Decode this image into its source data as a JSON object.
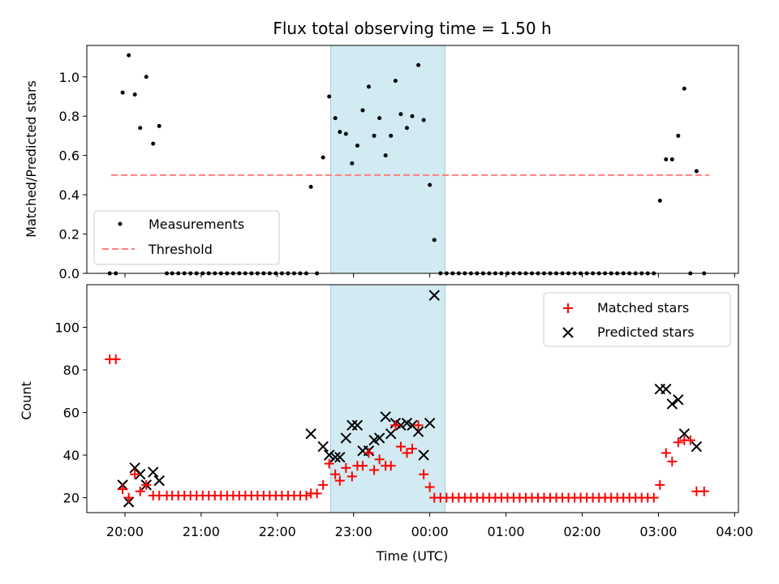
{
  "chart_data": [
    {
      "type": "scatter",
      "title": "Flux total observing time = 1.50 h",
      "xlabel": "",
      "ylabel": "Matched/Predicted stars",
      "ylim": [
        0,
        1.16
      ],
      "yticks": [
        "0.0",
        "0.2",
        "0.4",
        "0.6",
        "0.8",
        "1.0"
      ],
      "xlim": [
        -0.5,
        8.05
      ],
      "highlight_span": [
        2.7,
        4.2
      ],
      "legend": {
        "position": "lower-left",
        "entries": [
          "Measurements",
          "Threshold"
        ]
      },
      "threshold": {
        "name": "Threshold",
        "value": 0.5,
        "x_range": [
          -0.18,
          7.67
        ],
        "color": "#ff7f7f"
      },
      "series": [
        {
          "name": "Measurements",
          "color": "#000000",
          "points": [
            [
              -0.2,
              0
            ],
            [
              -0.12,
              0
            ],
            [
              -0.03,
              0.92
            ],
            [
              0.05,
              1.11
            ],
            [
              0.13,
              0.91
            ],
            [
              0.2,
              0.74
            ],
            [
              0.28,
              1.0
            ],
            [
              0.37,
              0.66
            ],
            [
              0.45,
              0.75
            ],
            [
              0.55,
              0
            ],
            [
              0.62,
              0
            ],
            [
              0.7,
              0
            ],
            [
              0.78,
              0
            ],
            [
              0.86,
              0
            ],
            [
              0.94,
              0
            ],
            [
              1.02,
              0
            ],
            [
              1.1,
              0
            ],
            [
              1.18,
              0
            ],
            [
              1.26,
              0
            ],
            [
              1.34,
              0
            ],
            [
              1.42,
              0
            ],
            [
              1.5,
              0
            ],
            [
              1.58,
              0
            ],
            [
              1.66,
              0
            ],
            [
              1.74,
              0
            ],
            [
              1.82,
              0
            ],
            [
              1.9,
              0
            ],
            [
              1.98,
              0
            ],
            [
              2.06,
              0
            ],
            [
              2.14,
              0
            ],
            [
              2.22,
              0
            ],
            [
              2.3,
              0
            ],
            [
              2.38,
              0.0
            ],
            [
              2.44,
              0.44
            ],
            [
              2.52,
              0
            ],
            [
              2.6,
              0.59
            ],
            [
              2.68,
              0.9
            ],
            [
              2.76,
              0.79
            ],
            [
              2.82,
              0.72
            ],
            [
              2.9,
              0.71
            ],
            [
              2.98,
              0.56
            ],
            [
              3.05,
              0.65
            ],
            [
              3.12,
              0.83
            ],
            [
              3.2,
              0.95
            ],
            [
              3.27,
              0.7
            ],
            [
              3.34,
              0.79
            ],
            [
              3.42,
              0.6
            ],
            [
              3.49,
              0.7
            ],
            [
              3.55,
              0.98
            ],
            [
              3.62,
              0.81
            ],
            [
              3.7,
              0.74
            ],
            [
              3.77,
              0.8
            ],
            [
              3.85,
              1.06
            ],
            [
              3.92,
              0.78
            ],
            [
              4.0,
              0.45
            ],
            [
              4.06,
              0.17
            ],
            [
              4.14,
              0
            ],
            [
              4.22,
              0
            ],
            [
              4.3,
              0
            ],
            [
              4.38,
              0
            ],
            [
              4.46,
              0
            ],
            [
              4.54,
              0
            ],
            [
              4.62,
              0
            ],
            [
              4.7,
              0
            ],
            [
              4.78,
              0
            ],
            [
              4.86,
              0
            ],
            [
              4.94,
              0
            ],
            [
              5.02,
              0
            ],
            [
              5.1,
              0
            ],
            [
              5.18,
              0
            ],
            [
              5.26,
              0
            ],
            [
              5.34,
              0
            ],
            [
              5.42,
              0
            ],
            [
              5.5,
              0
            ],
            [
              5.58,
              0
            ],
            [
              5.66,
              0
            ],
            [
              5.74,
              0
            ],
            [
              5.82,
              0
            ],
            [
              5.9,
              0
            ],
            [
              5.98,
              0
            ],
            [
              6.06,
              0
            ],
            [
              6.14,
              0
            ],
            [
              6.22,
              0
            ],
            [
              6.3,
              0
            ],
            [
              6.38,
              0
            ],
            [
              6.46,
              0
            ],
            [
              6.54,
              0
            ],
            [
              6.62,
              0
            ],
            [
              6.7,
              0
            ],
            [
              6.78,
              0
            ],
            [
              6.86,
              0
            ],
            [
              6.94,
              0
            ],
            [
              7.02,
              0.37
            ],
            [
              7.1,
              0.58
            ],
            [
              7.18,
              0.58
            ],
            [
              7.26,
              0.7
            ],
            [
              7.34,
              0.94
            ],
            [
              7.42,
              0
            ],
            [
              7.5,
              0.52
            ],
            [
              7.6,
              0
            ]
          ]
        }
      ]
    },
    {
      "type": "scatter",
      "title": "",
      "xlabel": "Time (UTC)",
      "ylabel": "Count",
      "ylim": [
        13,
        120
      ],
      "yticks": [
        "20",
        "40",
        "60",
        "80",
        "100"
      ],
      "xlim": [
        -0.5,
        8.05
      ],
      "categories": [
        "20:00",
        "21:00",
        "22:00",
        "23:00",
        "00:00",
        "01:00",
        "02:00",
        "03:00",
        "04:00"
      ],
      "highlight_span": [
        2.7,
        4.2
      ],
      "legend": {
        "position": "upper-right",
        "entries": [
          "Matched stars",
          "Predicted stars"
        ]
      },
      "series": [
        {
          "name": "Matched stars",
          "marker": "+",
          "color": "#ff0000",
          "points": [
            [
              -0.2,
              85
            ],
            [
              -0.12,
              85
            ],
            [
              -0.03,
              24
            ],
            [
              0.05,
              20
            ],
            [
              0.13,
              31
            ],
            [
              0.2,
              23
            ],
            [
              0.28,
              26
            ],
            [
              0.37,
              21
            ],
            [
              0.45,
              21
            ],
            [
              0.55,
              21
            ],
            [
              0.62,
              21
            ],
            [
              0.7,
              21
            ],
            [
              0.78,
              21
            ],
            [
              0.86,
              21
            ],
            [
              0.94,
              21
            ],
            [
              1.02,
              21
            ],
            [
              1.1,
              21
            ],
            [
              1.18,
              21
            ],
            [
              1.26,
              21
            ],
            [
              1.34,
              21
            ],
            [
              1.42,
              21
            ],
            [
              1.5,
              21
            ],
            [
              1.58,
              21
            ],
            [
              1.66,
              21
            ],
            [
              1.74,
              21
            ],
            [
              1.82,
              21
            ],
            [
              1.9,
              21
            ],
            [
              1.98,
              21
            ],
            [
              2.06,
              21
            ],
            [
              2.14,
              21
            ],
            [
              2.22,
              21
            ],
            [
              2.3,
              21
            ],
            [
              2.38,
              21
            ],
            [
              2.44,
              22
            ],
            [
              2.52,
              22
            ],
            [
              2.6,
              26
            ],
            [
              2.68,
              36
            ],
            [
              2.76,
              31
            ],
            [
              2.82,
              28
            ],
            [
              2.9,
              34
            ],
            [
              2.98,
              30
            ],
            [
              3.05,
              35
            ],
            [
              3.12,
              35
            ],
            [
              3.2,
              41
            ],
            [
              3.27,
              33
            ],
            [
              3.34,
              38
            ],
            [
              3.42,
              35
            ],
            [
              3.49,
              35
            ],
            [
              3.55,
              54
            ],
            [
              3.62,
              44
            ],
            [
              3.7,
              41
            ],
            [
              3.77,
              43
            ],
            [
              3.85,
              54
            ],
            [
              3.92,
              31
            ],
            [
              4.0,
              25
            ],
            [
              4.06,
              20
            ],
            [
              4.14,
              20
            ],
            [
              4.22,
              20
            ],
            [
              4.3,
              20
            ],
            [
              4.38,
              20
            ],
            [
              4.46,
              20
            ],
            [
              4.54,
              20
            ],
            [
              4.62,
              20
            ],
            [
              4.7,
              20
            ],
            [
              4.78,
              20
            ],
            [
              4.86,
              20
            ],
            [
              4.94,
              20
            ],
            [
              5.02,
              20
            ],
            [
              5.1,
              20
            ],
            [
              5.18,
              20
            ],
            [
              5.26,
              20
            ],
            [
              5.34,
              20
            ],
            [
              5.42,
              20
            ],
            [
              5.5,
              20
            ],
            [
              5.58,
              20
            ],
            [
              5.66,
              20
            ],
            [
              5.74,
              20
            ],
            [
              5.82,
              20
            ],
            [
              5.9,
              20
            ],
            [
              5.98,
              20
            ],
            [
              6.06,
              20
            ],
            [
              6.14,
              20
            ],
            [
              6.22,
              20
            ],
            [
              6.3,
              20
            ],
            [
              6.38,
              20
            ],
            [
              6.46,
              20
            ],
            [
              6.54,
              20
            ],
            [
              6.62,
              20
            ],
            [
              6.7,
              20
            ],
            [
              6.78,
              20
            ],
            [
              6.86,
              20
            ],
            [
              6.94,
              20
            ],
            [
              7.02,
              26
            ],
            [
              7.1,
              41
            ],
            [
              7.18,
              37
            ],
            [
              7.26,
              46
            ],
            [
              7.34,
              47
            ],
            [
              7.42,
              47
            ],
            [
              7.5,
              23
            ],
            [
              7.6,
              23
            ]
          ]
        },
        {
          "name": "Predicted stars",
          "marker": "x",
          "color": "#000000",
          "points": [
            [
              -0.03,
              26
            ],
            [
              0.05,
              18
            ],
            [
              0.13,
              34
            ],
            [
              0.2,
              31
            ],
            [
              0.28,
              26
            ],
            [
              0.37,
              32
            ],
            [
              0.45,
              28
            ],
            [
              2.44,
              50
            ],
            [
              2.6,
              44
            ],
            [
              2.68,
              40
            ],
            [
              2.76,
              39
            ],
            [
              2.82,
              39
            ],
            [
              2.9,
              48
            ],
            [
              2.98,
              54
            ],
            [
              3.05,
              54
            ],
            [
              3.12,
              42
            ],
            [
              3.2,
              42
            ],
            [
              3.27,
              47
            ],
            [
              3.34,
              48
            ],
            [
              3.42,
              58
            ],
            [
              3.49,
              50
            ],
            [
              3.55,
              55
            ],
            [
              3.62,
              54
            ],
            [
              3.7,
              55
            ],
            [
              3.77,
              54
            ],
            [
              3.85,
              51
            ],
            [
              3.92,
              40
            ],
            [
              4.0,
              55
            ],
            [
              4.06,
              115
            ],
            [
              7.02,
              71
            ],
            [
              7.1,
              71
            ],
            [
              7.18,
              64
            ],
            [
              7.26,
              66
            ],
            [
              7.34,
              50
            ],
            [
              7.5,
              44
            ]
          ]
        }
      ]
    }
  ]
}
